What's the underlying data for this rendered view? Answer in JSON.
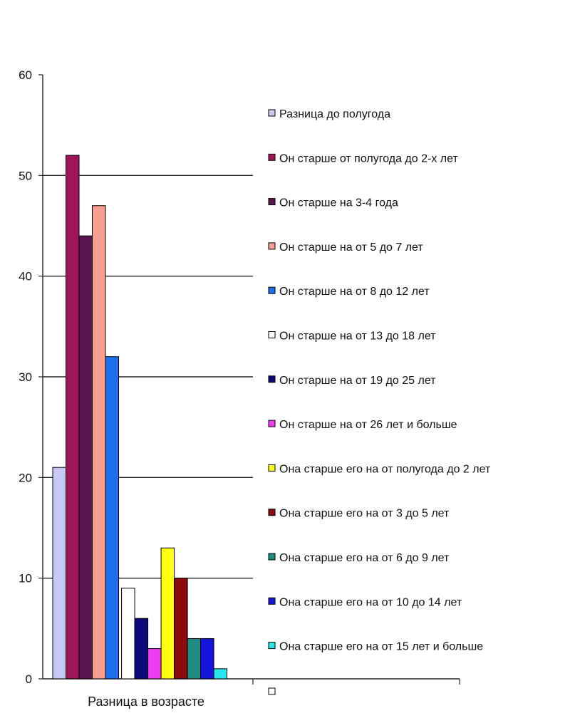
{
  "chart_data": {
    "type": "bar",
    "title": "",
    "xlabel": "",
    "ylabel": "",
    "categories": [
      "Разница в возрасте"
    ],
    "ylim": [
      0,
      60
    ],
    "yticks": [
      0,
      10,
      20,
      30,
      40,
      50,
      60
    ],
    "grid": true,
    "legend_position": "right",
    "series": [
      {
        "name": "Разница до полугода",
        "values": [
          21
        ],
        "color": "#c8c8f4"
      },
      {
        "name": "Он старше от полугода до 2-х лет",
        "values": [
          52
        ],
        "color": "#a0145a"
      },
      {
        "name": "Он старше на 3-4 года",
        "values": [
          44
        ],
        "color": "#5a1450"
      },
      {
        "name": "Он старше  на от 5 до 7 лет",
        "values": [
          47
        ],
        "color": "#f8a090"
      },
      {
        "name": "Он старше на от 8 до 12 лет",
        "values": [
          32
        ],
        "color": "#1e6ef0"
      },
      {
        "name": "Он старше на от 13 до 18 лет",
        "values": [
          9
        ],
        "color": "#ffffff"
      },
      {
        "name": "Он старше на  от 19 до 25 лет",
        "values": [
          6
        ],
        "color": "#0a0a78"
      },
      {
        "name": "Он старше на от 26 лет и больше",
        "values": [
          3
        ],
        "color": "#f03cf0"
      },
      {
        "name": "Она старше его на  от полугода до 2 лет",
        "values": [
          13
        ],
        "color": "#ffff14"
      },
      {
        "name": "Она старше его на  от 3 до 5 лет",
        "values": [
          10
        ],
        "color": "#8c0a0a"
      },
      {
        "name": "Она старше его на  от 6 до 9 лет",
        "values": [
          4
        ],
        "color": "#1e8c82"
      },
      {
        "name": "Она старше его на  от 10 до 14 лет",
        "values": [
          4
        ],
        "color": "#1414dc"
      },
      {
        "name": "Она старше его на  от 15 лет и больше",
        "values": [
          1
        ],
        "color": "#28e6f0"
      }
    ]
  }
}
